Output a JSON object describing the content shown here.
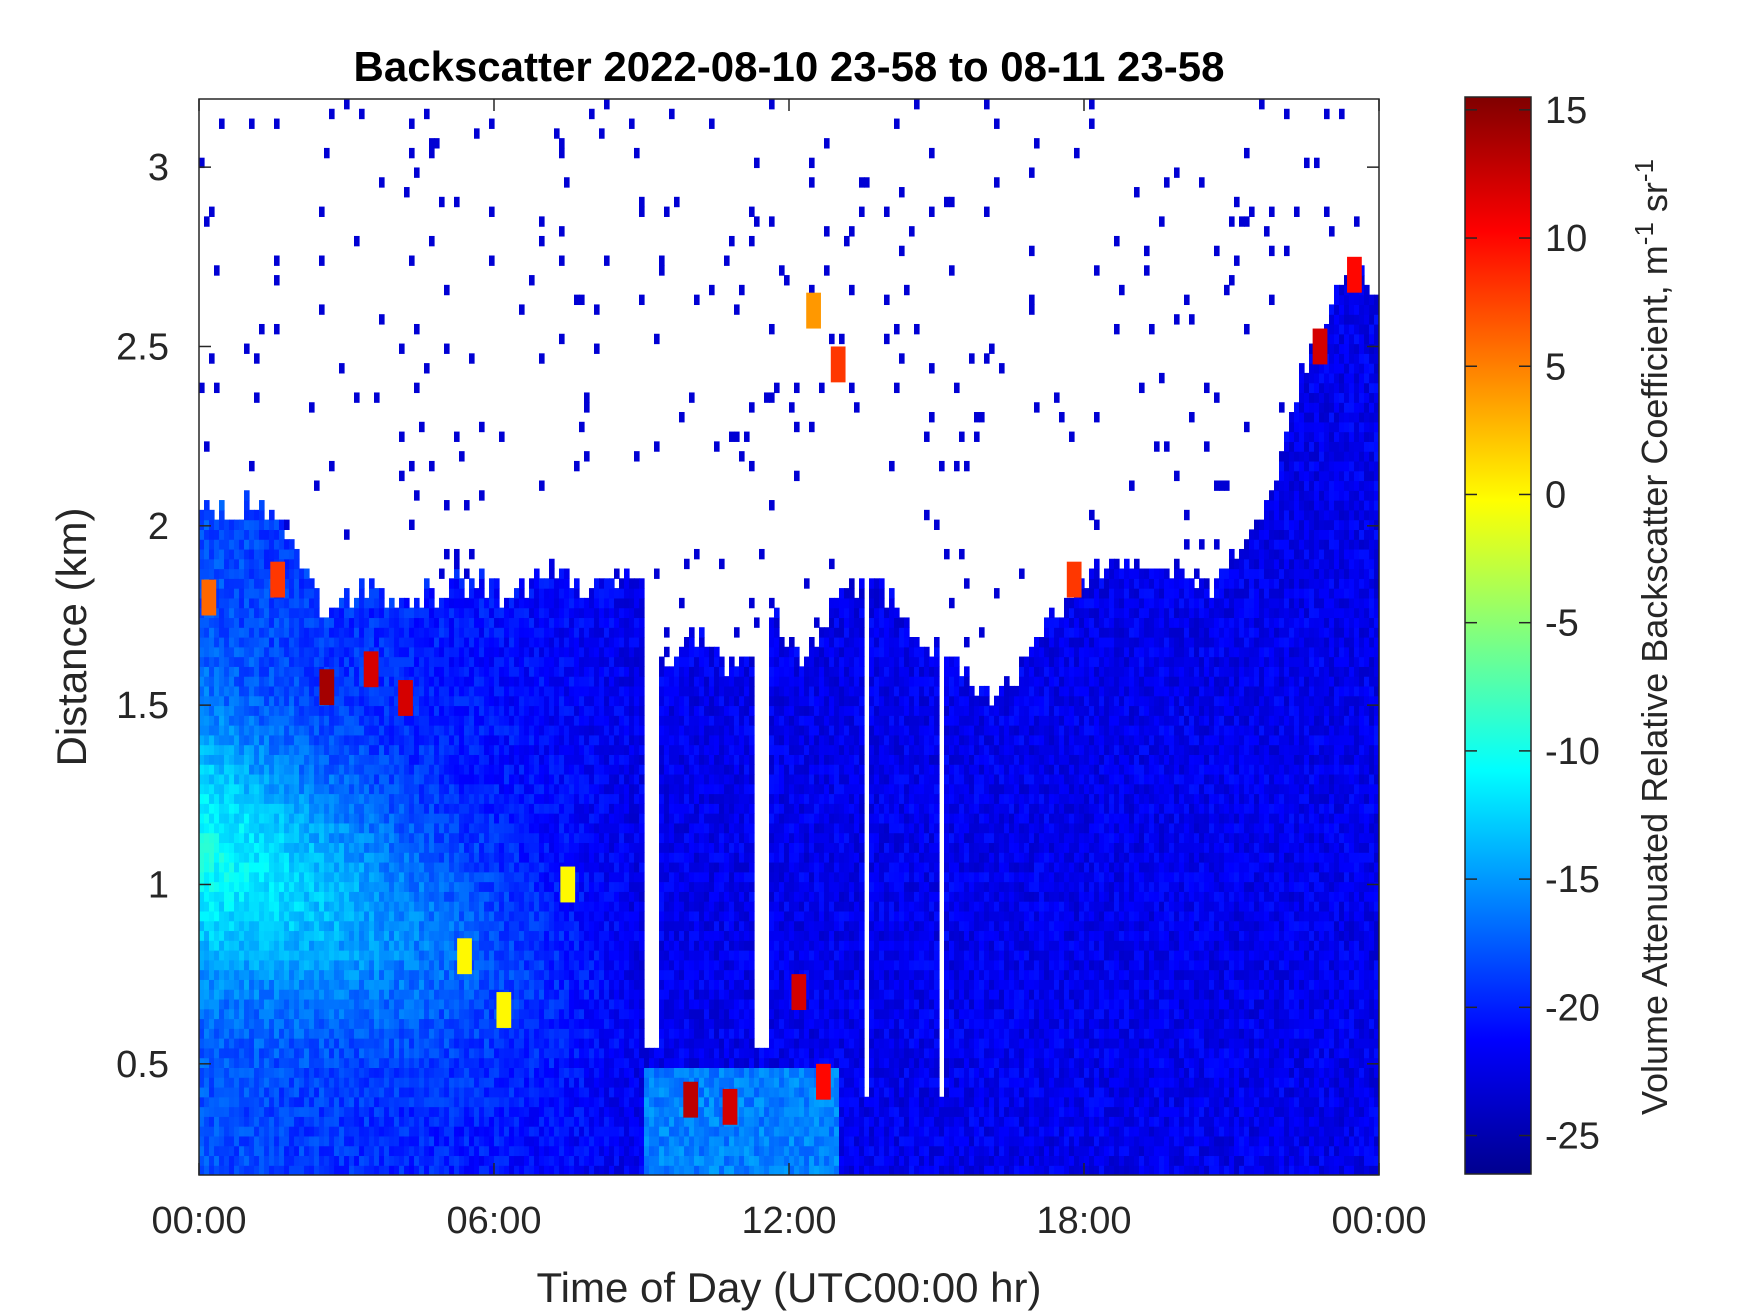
{
  "chart_data": {
    "type": "heatmap",
    "title": "Backscatter 2022-08-10 23-58 to 08-11 23-58",
    "xlabel": "Time of Day (UTC00:00 hr)",
    "ylabel": "Distance (km)",
    "colorbar_label_main": "Volume Attenuated Relative Backscatter Coefficient, m",
    "colorbar_label_sup1": "-1",
    "colorbar_label_mid": " sr",
    "colorbar_label_sup2": "-1",
    "colormap": "jet",
    "x_ticks": [
      0,
      6,
      12,
      18,
      24
    ],
    "x_tick_labels": [
      "00:00",
      "06:00",
      "12:00",
      "18:00",
      "00:00"
    ],
    "xlim": [
      0,
      24
    ],
    "y_ticks": [
      0.5,
      1,
      1.5,
      2,
      2.5,
      3
    ],
    "y_tick_labels": [
      "0.5",
      "1",
      "1.5",
      "2",
      "2.5",
      "3"
    ],
    "ylim": [
      0.19,
      3.19
    ],
    "color_ticks": [
      15,
      10,
      5,
      0,
      -5,
      -10,
      -15,
      -20,
      -25
    ],
    "color_tick_labels": [
      "15",
      "10",
      "5",
      "0",
      "-5",
      "-10",
      "-15",
      "-20",
      "-25"
    ],
    "clim": [
      -26.5,
      15.5
    ],
    "cloud_top_km": {
      "time_hr": [
        0,
        0.5,
        1,
        1.5,
        2,
        2.5,
        3,
        3.5,
        4,
        4.5,
        5,
        5.5,
        6,
        6.5,
        7,
        7.5,
        8,
        8.5,
        8.9,
        9.5,
        10,
        10.5,
        11,
        11.5,
        12,
        12.5,
        13,
        13.5,
        14,
        14.5,
        15,
        15.5,
        16,
        16.5,
        17,
        17.5,
        18,
        18.5,
        19,
        19.5,
        20,
        20.5,
        21,
        21.5,
        22,
        22.5,
        23,
        23.5,
        24
      ],
      "top_km": [
        2.05,
        2.03,
        2.05,
        2.02,
        1.95,
        1.75,
        1.8,
        1.82,
        1.78,
        1.8,
        1.82,
        1.84,
        1.82,
        1.8,
        1.88,
        1.85,
        1.82,
        1.82,
        1.9,
        1.6,
        1.7,
        1.65,
        1.6,
        1.75,
        1.7,
        1.62,
        1.85,
        1.82,
        1.8,
        1.72,
        1.65,
        1.6,
        1.52,
        1.55,
        1.68,
        1.78,
        1.85,
        1.88,
        1.92,
        1.9,
        1.85,
        1.82,
        1.9,
        2.0,
        2.2,
        2.45,
        2.6,
        2.72,
        2.65
      ]
    },
    "hotspots": [
      {
        "time_hr": 2.6,
        "dist_km": 1.55,
        "value": 14
      },
      {
        "time_hr": 3.5,
        "dist_km": 1.6,
        "value": 12
      },
      {
        "time_hr": 4.2,
        "dist_km": 1.52,
        "value": 12
      },
      {
        "time_hr": 1.6,
        "dist_km": 1.85,
        "value": 8
      },
      {
        "time_hr": 0.2,
        "dist_km": 1.8,
        "value": 6
      },
      {
        "time_hr": 13.0,
        "dist_km": 2.45,
        "value": 8
      },
      {
        "time_hr": 12.5,
        "dist_km": 2.6,
        "value": 4
      },
      {
        "time_hr": 10.0,
        "dist_km": 0.4,
        "value": 13
      },
      {
        "time_hr": 10.8,
        "dist_km": 0.38,
        "value": 12
      },
      {
        "time_hr": 12.7,
        "dist_km": 0.45,
        "value": 10
      },
      {
        "time_hr": 12.2,
        "dist_km": 0.7,
        "value": 12
      },
      {
        "time_hr": 22.8,
        "dist_km": 2.5,
        "value": 12
      },
      {
        "time_hr": 23.5,
        "dist_km": 2.7,
        "value": 10
      },
      {
        "time_hr": 17.8,
        "dist_km": 1.85,
        "value": 8
      },
      {
        "time_hr": 7.5,
        "dist_km": 1.0,
        "value": 0
      },
      {
        "time_hr": 6.2,
        "dist_km": 0.65,
        "value": 0
      },
      {
        "time_hr": 5.4,
        "dist_km": 0.8,
        "value": 0
      }
    ],
    "grid": false
  }
}
